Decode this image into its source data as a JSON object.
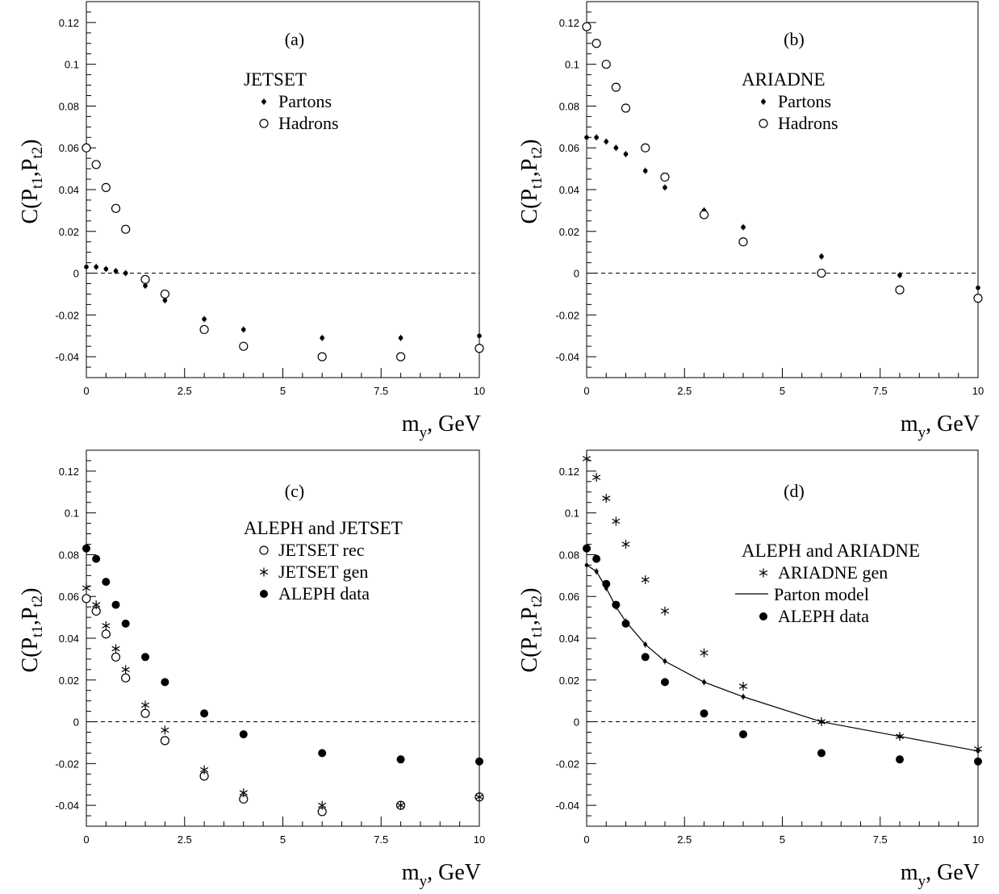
{
  "chart_data": [
    {
      "id": "a",
      "type": "scatter",
      "panel_label": "(a)",
      "legend_title": "JETSET",
      "ylabel_main": "C(P",
      "ylabel_sub1": "t1",
      "ylabel_sep": ",P",
      "ylabel_sub2": "t2",
      "ylabel_close": ")",
      "xlabel_main": "m",
      "xlabel_sub": "y",
      "xlabel_unit": ", GeV",
      "xlim": [
        0,
        10
      ],
      "ylim": [
        -0.05,
        0.13
      ],
      "x_ticks": [
        "0",
        "2.5",
        "5",
        "7.5",
        "10"
      ],
      "y_ticks": [
        "-0.04",
        "-0.02",
        "0",
        "0.02",
        "0.04",
        "0.06",
        "0.08",
        "0.1",
        "0.12"
      ],
      "series": [
        {
          "name": "Partons",
          "marker": "small-dot",
          "x": [
            0,
            0.25,
            0.5,
            0.75,
            1,
            1.5,
            2,
            3,
            4,
            6,
            8,
            10
          ],
          "y": [
            0.003,
            0.003,
            0.002,
            0.001,
            0.0,
            -0.006,
            -0.013,
            -0.022,
            -0.027,
            -0.031,
            -0.031,
            -0.03
          ]
        },
        {
          "name": "Hadrons",
          "marker": "open-circle",
          "x": [
            0,
            0.25,
            0.5,
            0.75,
            1,
            1.5,
            2,
            3,
            4,
            6,
            8,
            10
          ],
          "y": [
            0.06,
            0.052,
            0.041,
            0.031,
            0.021,
            -0.003,
            -0.01,
            -0.027,
            -0.035,
            -0.04,
            -0.04,
            -0.036
          ]
        }
      ]
    },
    {
      "id": "b",
      "type": "scatter",
      "panel_label": "(b)",
      "legend_title": "ARIADNE",
      "ylabel_main": "C(P",
      "ylabel_sub1": "t1",
      "ylabel_sep": ",P",
      "ylabel_sub2": "t2",
      "ylabel_close": ")",
      "xlabel_main": "m",
      "xlabel_sub": "y",
      "xlabel_unit": ", GeV",
      "xlim": [
        0,
        10
      ],
      "ylim": [
        -0.05,
        0.13
      ],
      "x_ticks": [
        "0",
        "2.5",
        "5",
        "7.5",
        "10"
      ],
      "y_ticks": [
        "-0.04",
        "-0.02",
        "0",
        "0.02",
        "0.04",
        "0.06",
        "0.08",
        "0.1",
        "0.12"
      ],
      "series": [
        {
          "name": "Partons",
          "marker": "small-dot",
          "x": [
            0,
            0.25,
            0.5,
            0.75,
            1,
            1.5,
            2,
            3,
            4,
            6,
            8,
            10
          ],
          "y": [
            0.065,
            0.065,
            0.063,
            0.06,
            0.057,
            0.049,
            0.041,
            0.03,
            0.022,
            0.008,
            -0.001,
            -0.007
          ]
        },
        {
          "name": "Hadrons",
          "marker": "open-circle",
          "x": [
            0,
            0.25,
            0.5,
            0.75,
            1,
            1.5,
            2,
            3,
            4,
            6,
            8,
            10
          ],
          "y": [
            0.118,
            0.11,
            0.1,
            0.089,
            0.079,
            0.06,
            0.046,
            0.028,
            0.015,
            0.0,
            -0.008,
            -0.012
          ]
        }
      ]
    },
    {
      "id": "c",
      "type": "scatter",
      "panel_label": "(c)",
      "legend_title": "ALEPH and JETSET",
      "ylabel_main": "C(P",
      "ylabel_sub1": "t1",
      "ylabel_sep": ",P",
      "ylabel_sub2": "t2",
      "ylabel_close": ")",
      "xlabel_main": "m",
      "xlabel_sub": "y",
      "xlabel_unit": ", GeV",
      "xlim": [
        0,
        10
      ],
      "ylim": [
        -0.05,
        0.13
      ],
      "x_ticks": [
        "0",
        "2.5",
        "5",
        "7.5",
        "10"
      ],
      "y_ticks": [
        "-0.04",
        "-0.02",
        "0",
        "0.02",
        "0.04",
        "0.06",
        "0.08",
        "0.1",
        "0.12"
      ],
      "series": [
        {
          "name": "JETSET rec",
          "marker": "open-circle",
          "x": [
            0,
            0.25,
            0.5,
            0.75,
            1,
            1.5,
            2,
            3,
            4,
            6,
            8,
            10
          ],
          "y": [
            0.059,
            0.053,
            0.042,
            0.031,
            0.021,
            0.004,
            -0.009,
            -0.026,
            -0.037,
            -0.043,
            -0.04,
            -0.036
          ]
        },
        {
          "name": "JETSET gen",
          "marker": "asterisk",
          "x": [
            0,
            0.25,
            0.5,
            0.75,
            1,
            1.5,
            2,
            3,
            4,
            6,
            8,
            10
          ],
          "y": [
            0.064,
            0.056,
            0.046,
            0.035,
            0.025,
            0.008,
            -0.004,
            -0.023,
            -0.034,
            -0.04,
            -0.04,
            -0.036
          ]
        },
        {
          "name": "ALEPH data",
          "marker": "filled-circle",
          "x": [
            0,
            0.25,
            0.5,
            0.75,
            1,
            1.5,
            2,
            3,
            4,
            6,
            8,
            10
          ],
          "y": [
            0.083,
            0.078,
            0.067,
            0.056,
            0.047,
            0.031,
            0.019,
            0.004,
            -0.006,
            -0.015,
            -0.018,
            -0.019
          ]
        }
      ]
    },
    {
      "id": "d",
      "type": "scatter",
      "panel_label": "(d)",
      "legend_title": "ALEPH and ARIADNE",
      "ylabel_main": "C(P",
      "ylabel_sub1": "t1",
      "ylabel_sep": ",P",
      "ylabel_sub2": "t2",
      "ylabel_close": ")",
      "xlabel_main": "m",
      "xlabel_sub": "y",
      "xlabel_unit": ", GeV",
      "xlim": [
        0,
        10
      ],
      "ylim": [
        -0.05,
        0.13
      ],
      "x_ticks": [
        "0",
        "2.5",
        "5",
        "7.5",
        "10"
      ],
      "y_ticks": [
        "-0.04",
        "-0.02",
        "0",
        "0.02",
        "0.04",
        "0.06",
        "0.08",
        "0.1",
        "0.12"
      ],
      "series": [
        {
          "name": "ARIADNE gen",
          "marker": "asterisk",
          "x": [
            0,
            0.25,
            0.5,
            0.75,
            1,
            1.5,
            2,
            3,
            4,
            6,
            8,
            10
          ],
          "y": [
            0.126,
            0.117,
            0.107,
            0.096,
            0.085,
            0.068,
            0.053,
            0.033,
            0.017,
            0.0,
            -0.007,
            -0.013
          ]
        },
        {
          "name": "Parton model",
          "marker": "line",
          "x": [
            0,
            0.25,
            0.5,
            0.75,
            1,
            1.5,
            2,
            3,
            4,
            6,
            8,
            10
          ],
          "y": [
            0.075,
            0.072,
            0.064,
            0.055,
            0.048,
            0.037,
            0.029,
            0.019,
            0.012,
            0.0,
            -0.007,
            -0.014
          ]
        },
        {
          "name": "ALEPH data",
          "marker": "filled-circle",
          "x": [
            0,
            0.25,
            0.5,
            0.75,
            1,
            1.5,
            2,
            3,
            4,
            6,
            8,
            10
          ],
          "y": [
            0.083,
            0.078,
            0.066,
            0.056,
            0.047,
            0.031,
            0.019,
            0.004,
            -0.006,
            -0.015,
            -0.018,
            -0.019
          ]
        }
      ]
    }
  ]
}
